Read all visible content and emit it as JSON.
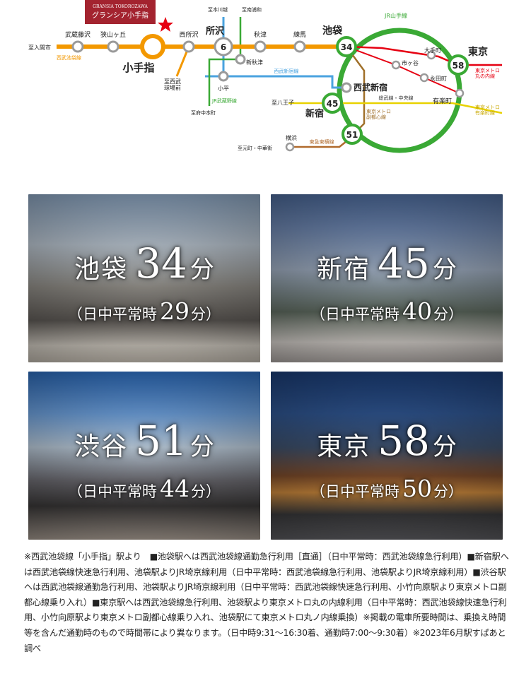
{
  "brand": {
    "name_en": "GRANSIA TOKOROZAWA",
    "name_jp": "グランシア小手指"
  },
  "map": {
    "stations": {
      "iruma": "至入間市",
      "musashi_fujisawa": "武蔵藤沢",
      "sayamagaoka": "狭山ヶ丘",
      "kotesashi": "小手指",
      "nishi_tokorozawa": "西所沢",
      "seibu_kyujomae": "至西武\n球場前",
      "tokorozawa": "所沢",
      "hon_kawagoe": "至本川越",
      "minami_urawa": "至南浦和",
      "akitsu": "秋津",
      "shin_akitsu": "新秋津",
      "nerima": "練馬",
      "ikebukuro": "池袋",
      "kodaira": "小平",
      "fuchu_honmachi": "至府中本町",
      "seibu_shinjuku": "西武新宿",
      "shinjuku": "新宿",
      "hachioji": "至八王子",
      "ichigaya": "市ヶ谷",
      "iidabashi": "大手町",
      "nagatacho": "永田町",
      "yurakucho": "有楽町",
      "tokyo": "東京",
      "yokohama": "横浜",
      "motomachi": "至元町・中華街"
    },
    "lines": {
      "seibu_ikebukuro": "西武池袋線",
      "seibu_shinjuku": "西武新宿線",
      "jr_musashino": "JR武蔵野線",
      "jr_yamanote": "JR山手線",
      "sobu_chuo": "総武線・中央線",
      "fukutoshin": "東京メトロ\n副都心線",
      "toyoko": "東急東横線",
      "marunouchi": "東京メトロ\n丸の内線",
      "yurakucho": "東京メトロ\n有楽町線"
    },
    "minutes": {
      "tokorozawa": "6",
      "ikebukuro": "34",
      "shinjuku": "45",
      "shibuya": "51",
      "tokyo": "58"
    },
    "colors": {
      "seibu_ikebukuro": "#f39800",
      "seibu_shinjuku": "#4aa3df",
      "jr_musashino": "#3aa935",
      "jr_yamanote": "#3aa935",
      "sobu_chuo": "#e8d200",
      "fukutoshin": "#a0702a",
      "toyoko": "#b06a2c",
      "marunouchi": "#e60012",
      "yurakucho": "#c9a800",
      "star": "#e60012"
    }
  },
  "tiles": [
    {
      "station": "池袋",
      "minutes": "34",
      "unit": "分",
      "daytime_label": "日中平常時",
      "daytime_minutes": "29",
      "daytime_unit": "分"
    },
    {
      "station": "新宿",
      "minutes": "45",
      "unit": "分",
      "daytime_label": "日中平常時",
      "daytime_minutes": "40",
      "daytime_unit": "分"
    },
    {
      "station": "渋谷",
      "minutes": "51",
      "unit": "分",
      "daytime_label": "日中平常時",
      "daytime_minutes": "44",
      "daytime_unit": "分"
    },
    {
      "station": "東京",
      "minutes": "58",
      "unit": "分",
      "daytime_label": "日中平常時",
      "daytime_minutes": "50",
      "daytime_unit": "分"
    }
  ],
  "paren_open": "（",
  "paren_close": "）",
  "notes": "※西武池袋線「小手指」駅より　■池袋駅へは西武池袋線通勤急行利用［直通］（日中平常時：西武池袋線急行利用）■新宿駅へは西武池袋線快速急行利用、池袋駅よりJR埼京線利用（日中平常時：西武池袋線急行利用、池袋駅よりJR埼京線利用）■渋谷駅へは西武池袋線通勤急行利用、池袋駅よりJR埼京線利用（日中平常時：西武池袋線快速急行利用、小竹向原駅より東京メトロ副都心線乗り入れ）■東京駅へは西武池袋線急行利用、池袋駅より東京メトロ丸の内線利用（日中平常時：西武池袋線快速急行利用、小竹向原駅より東京メトロ副都心線乗り入れ、池袋駅にて東京メトロ丸ノ内線乗換）※掲載の電車所要時間は、乗換え時間等を含んだ通勤時のもので時間帯により異なります。（日中時9:31～16:30着、通勤時7:00～9:30着）※2023年6月駅すぱあと調べ"
}
